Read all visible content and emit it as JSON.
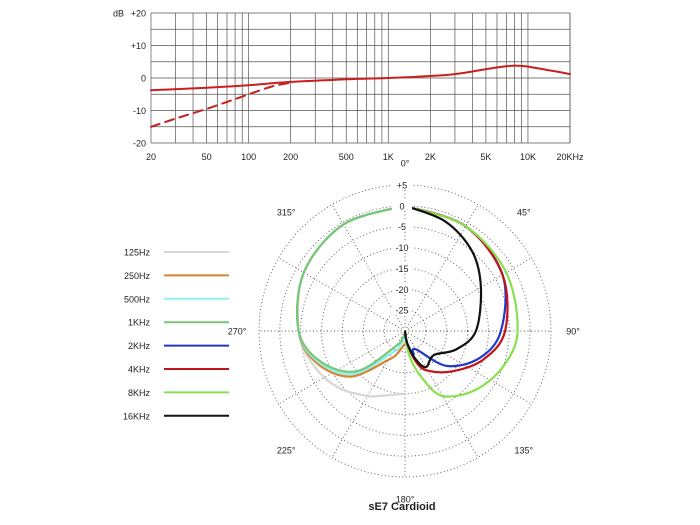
{
  "chart_data": [
    {
      "type": "line",
      "title": "",
      "xscale": "log",
      "xlim": [
        20,
        20000
      ],
      "ylim": [
        -20,
        20
      ],
      "grid": true,
      "y_unit_label": "dB",
      "y_ticks": [
        {
          "value": 20,
          "label": "+20"
        },
        {
          "value": 10,
          "label": "+10"
        },
        {
          "value": 0,
          "label": "0"
        },
        {
          "value": -10,
          "label": "-10"
        },
        {
          "value": -20,
          "label": "-20"
        }
      ],
      "x_ticks": [
        {
          "value": 20,
          "label": "20"
        },
        {
          "value": 50,
          "label": "50"
        },
        {
          "value": 100,
          "label": "100"
        },
        {
          "value": 200,
          "label": "200"
        },
        {
          "value": 500,
          "label": "500"
        },
        {
          "value": 1000,
          "label": "1K"
        },
        {
          "value": 2000,
          "label": "2K"
        },
        {
          "value": 5000,
          "label": "5K"
        },
        {
          "value": 10000,
          "label": "10K"
        },
        {
          "value": 20000,
          "label": "20KHz"
        }
      ],
      "series": [
        {
          "style": "solid",
          "color": "#c8201e",
          "x": [
            20,
            50,
            100,
            200,
            500,
            1000,
            2000,
            3000,
            5000,
            7000,
            8500,
            10000,
            15000,
            20000
          ],
          "y": [
            -3.8,
            -3,
            -2.2,
            -1.2,
            -0.4,
            0,
            0.6,
            1.2,
            2.7,
            3.6,
            3.8,
            3.5,
            2.2,
            1.2
          ]
        },
        {
          "style": "dashed",
          "color": "#c8201e",
          "x": [
            20,
            30,
            50,
            80,
            100,
            150,
            200
          ],
          "y": [
            -15,
            -12.5,
            -9.5,
            -6.5,
            -5,
            -2.5,
            -1.5
          ]
        }
      ]
    },
    {
      "type": "polar",
      "title": "sE7  Cardioid",
      "r_min": -30,
      "r_max": 5,
      "radial_ticks": [
        "+5",
        "0",
        "-5",
        "-10",
        "-15",
        "-20",
        "-25"
      ],
      "angle_labels": [
        {
          "angle": 0,
          "label": "0°"
        },
        {
          "angle": 45,
          "label": "45°"
        },
        {
          "angle": 90,
          "label": "90°"
        },
        {
          "angle": 135,
          "label": "135°"
        },
        {
          "angle": 180,
          "label": "180°"
        },
        {
          "angle": 225,
          "label": "225°"
        },
        {
          "angle": 270,
          "label": "270°"
        },
        {
          "angle": 315,
          "label": "315°"
        }
      ],
      "legend_position": "left",
      "series": [
        {
          "name": "125Hz",
          "color": "#d6d6d6",
          "side": "left",
          "theta": [
            0,
            30,
            60,
            90,
            110,
            130,
            150,
            160,
            170,
            180
          ],
          "db": [
            0,
            -0.5,
            -2,
            -4.5,
            -6.5,
            -9,
            -12,
            -13.5,
            -14.5,
            -15
          ]
        },
        {
          "name": "250Hz",
          "color": "#d8822e",
          "side": "left",
          "theta": [
            0,
            30,
            60,
            90,
            110,
            130,
            150,
            160,
            170,
            180
          ],
          "db": [
            0,
            -0.5,
            -2,
            -4.5,
            -7.5,
            -13,
            -22,
            -24,
            -26,
            -27
          ]
        },
        {
          "name": "500Hz",
          "color": "#8ff0ee",
          "side": "left",
          "theta": [
            0,
            30,
            60,
            90,
            110,
            130,
            150,
            160,
            170,
            180
          ],
          "db": [
            0,
            -0.5,
            -2,
            -4.5,
            -8,
            -14,
            -24,
            -26,
            -28,
            -29
          ]
        },
        {
          "name": "1KHz",
          "color": "#76c878",
          "side": "left",
          "theta": [
            0,
            30,
            60,
            90,
            110,
            130,
            150,
            160,
            170,
            180
          ],
          "db": [
            0,
            -0.5,
            -2,
            -4.5,
            -8.5,
            -15,
            -26,
            -28,
            -29,
            -30
          ]
        },
        {
          "name": "2KHz",
          "color": "#2038c8",
          "side": "right",
          "theta": [
            0,
            30,
            60,
            90,
            110,
            130,
            150,
            160,
            170,
            180
          ],
          "db": [
            0,
            -1,
            -3,
            -7,
            -11,
            -17,
            -25,
            -24,
            -27,
            -30
          ]
        },
        {
          "name": "4KHz",
          "color": "#c0141a",
          "side": "right",
          "theta": [
            0,
            30,
            60,
            90,
            110,
            130,
            150,
            160,
            170,
            180
          ],
          "db": [
            0,
            -1,
            -3,
            -6,
            -10,
            -15,
            -19,
            -22,
            -27,
            -30
          ]
        },
        {
          "name": "8KHz",
          "color": "#88e050",
          "side": "right",
          "theta": [
            0,
            30,
            60,
            90,
            110,
            130,
            150,
            160,
            170,
            180
          ],
          "db": [
            0,
            -1,
            -2,
            -3,
            -5,
            -8,
            -12,
            -18,
            -24,
            -30
          ]
        },
        {
          "name": "16KHz",
          "color": "#111111",
          "side": "right",
          "theta": [
            0,
            20,
            40,
            60,
            90,
            110,
            130,
            150,
            160,
            170,
            180
          ],
          "db": [
            0,
            -2,
            -5,
            -9,
            -13,
            -17,
            -21,
            -20,
            -23,
            -27,
            -30
          ]
        }
      ]
    }
  ]
}
